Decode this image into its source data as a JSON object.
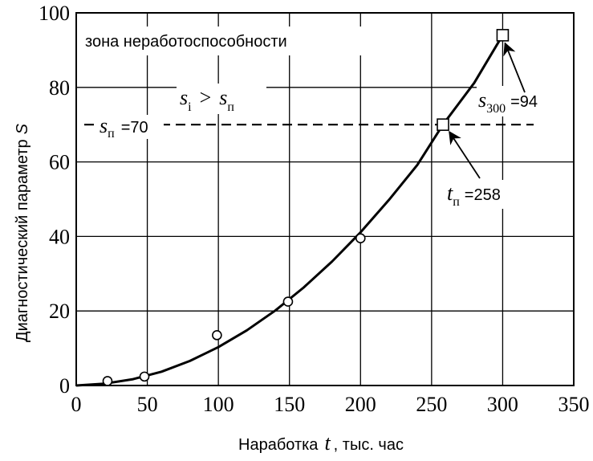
{
  "chart_data": {
    "type": "line",
    "xlabel": {
      "prefix": "Наработка",
      "variable": "t",
      "suffix": ", тыс. час"
    },
    "ylabel": {
      "text": "Диагностический параметр",
      "variable": "S"
    },
    "xlim": [
      0,
      350
    ],
    "ylim": [
      0,
      100
    ],
    "xticks": [
      0,
      50,
      100,
      150,
      200,
      250,
      300,
      350
    ],
    "yticks": [
      0,
      20,
      40,
      60,
      80,
      100
    ],
    "grid": true,
    "series": [
      {
        "kind": "curve",
        "x": [
          0,
          20,
          40,
          60,
          80,
          100,
          120,
          140,
          160,
          180,
          200,
          220,
          240,
          258,
          280,
          300
        ],
        "y": [
          0,
          0.5,
          1.7,
          3.7,
          6.6,
          10.3,
          14.8,
          20.1,
          26.3,
          33.3,
          41.1,
          49.8,
          59.2,
          70,
          81.2,
          94
        ]
      },
      {
        "kind": "observed",
        "marker": "circle",
        "x": [
          22,
          48,
          99,
          149,
          200
        ],
        "y": [
          1.2,
          2.4,
          13.5,
          22.5,
          39.5
        ]
      },
      {
        "kind": "key-points",
        "marker": "square",
        "x": [
          258,
          300
        ],
        "y": [
          70,
          94
        ]
      }
    ],
    "threshold": {
      "y": 70,
      "style": "dashed",
      "label": {
        "var": "s",
        "sub": "п",
        "value": "=70"
      }
    },
    "annotations": {
      "zone": "зона неработоспособности",
      "condition": {
        "lhs_var": "s",
        "lhs_sub": "i",
        "op": ">",
        "rhs_var": "s",
        "rhs_sub": "п"
      },
      "s300": {
        "var": "s",
        "sub": "300",
        "value": "=94",
        "target": [
          300,
          94
        ]
      },
      "tp": {
        "var": "t",
        "sub": "п",
        "value": "=258",
        "target": [
          258,
          70
        ]
      }
    }
  }
}
